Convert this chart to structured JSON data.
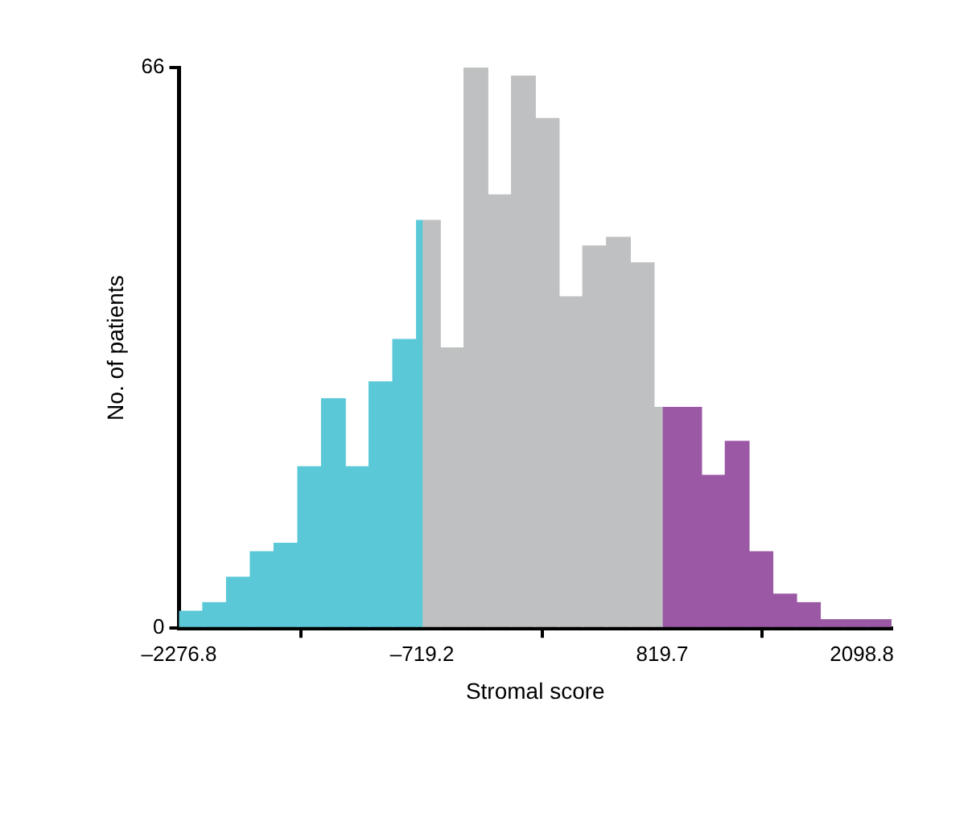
{
  "chart_data": {
    "type": "histogram",
    "xlabel": "Stromal score",
    "ylabel": "No. of patients",
    "xlim": [
      -2276.8,
      2289.2
    ],
    "xticks": [
      {
        "value": -2276.8,
        "label": "–2276.8"
      },
      {
        "value": -719.2,
        "label": "–719.2"
      },
      819.7,
      2098.8
    ],
    "ylim": [
      0,
      66
    ],
    "yticks": [
      0,
      66
    ],
    "grid": false,
    "legend": false,
    "bins": [
      -2276.8,
      -2124.6,
      -1972.4,
      -1820.2,
      -1668,
      -1515.8,
      -1363.6,
      -1211.4,
      -1059.2,
      -907,
      -754.8,
      -719.2,
      -602.6,
      -450.4,
      -298.2,
      -146,
      6.2,
      158.4,
      310.6,
      462.8,
      615,
      767.2,
      819.7,
      919.4,
      1071.6,
      1223.8,
      1376,
      1528.2,
      1680.4,
      1832.6,
      1984.8,
      2137,
      2289.2
    ],
    "values": [
      2,
      3,
      6,
      9,
      10,
      19,
      27,
      19,
      29,
      34,
      48,
      48,
      33,
      66,
      51,
      65,
      60,
      39,
      45,
      46,
      43,
      26,
      26,
      26,
      18,
      22,
      9,
      4,
      3,
      1,
      1,
      1
    ],
    "colors": [
      "#5bc8d8",
      "#5bc8d8",
      "#5bc8d8",
      "#5bc8d8",
      "#5bc8d8",
      "#5bc8d8",
      "#5bc8d8",
      "#5bc8d8",
      "#5bc8d8",
      "#5bc8d8",
      "#5bc8d8",
      "#bfc0c1",
      "#bfc0c1",
      "#bfc0c1",
      "#bfc0c1",
      "#bfc0c1",
      "#bfc0c1",
      "#bfc0c1",
      "#bfc0c1",
      "#bfc0c1",
      "#bfc0c1",
      "#bfc0c1",
      "#9b59a5",
      "#9b59a5",
      "#9b59a5",
      "#9b59a5",
      "#9b59a5",
      "#9b59a5",
      "#9b59a5",
      "#9b59a5",
      "#9b59a5",
      "#9b59a5"
    ]
  }
}
